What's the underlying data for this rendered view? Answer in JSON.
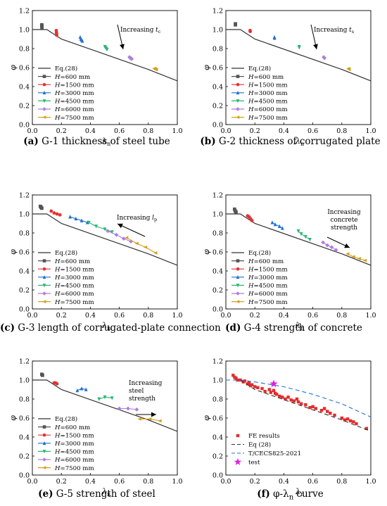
{
  "captions": [
    {
      "label": "(a)",
      "text": " G-1 thickness of steel tube"
    },
    {
      "label": "(b)",
      "text": " G-2 thickness of corrugated plate"
    },
    {
      "label": "(c)",
      "text": " G-3 length of corrugated-plate connection"
    },
    {
      "label": "(d)",
      "text": " G-4 strength of concrete"
    },
    {
      "label": "(e)",
      "text": " G-5 strength of steel"
    },
    {
      "label": "(f)",
      "text": "  φ-λ",
      "sub": "n",
      "tail": " curve"
    }
  ],
  "colors": {
    "eq28": "#333333",
    "H600": "#555555",
    "H1500": "#e63232",
    "H3000": "#1f6fd6",
    "H4500": "#2bb673",
    "H6000": "#b07ce0",
    "H7500": "#d4a017",
    "fe": "#e62b2b",
    "tcecs": "#1f6fd6",
    "test": "#e020e0"
  },
  "chart_data": [
    {
      "type": "line",
      "panel": "a",
      "xlabel": "λ",
      "xlabel_sub": "n",
      "ylabel": "φ",
      "xlim": [
        0,
        1.0
      ],
      "ylim": [
        0,
        1.2
      ],
      "xticks": [
        "0.0",
        "0.2",
        "0.4",
        "0.6",
        "0.8",
        "1.0"
      ],
      "yticks": [
        "0.0",
        "0.2",
        "0.4",
        "0.6",
        "0.8",
        "1.0",
        "1.2"
      ],
      "legend": [
        "Eq.(28)",
        "H=600 mm",
        "H=1500 mm",
        "H=3000 mm",
        "H=4500 mm",
        "H=6000 mm",
        "H=7500 mm"
      ],
      "annotation": {
        "text": "Increasing t",
        "sub": "c",
        "arrow": "down"
      },
      "series": [
        {
          "name": "Eq.(28)",
          "style": "line",
          "x": [
            0.0,
            0.1,
            0.2,
            0.8,
            1.0
          ],
          "y": [
            1.0,
            1.0,
            0.9,
            0.58,
            0.46
          ]
        },
        {
          "name": "H=600 mm",
          "style": "markers",
          "x": [
            0.065,
            0.065,
            0.066,
            0.066
          ],
          "y": [
            1.05,
            1.04,
            1.03,
            1.02
          ]
        },
        {
          "name": "H=1500 mm",
          "style": "markers",
          "x": [
            0.165,
            0.166,
            0.167,
            0.168
          ],
          "y": [
            0.99,
            0.97,
            0.96,
            0.94
          ]
        },
        {
          "name": "H=3000 mm",
          "style": "markers",
          "x": [
            0.33,
            0.335,
            0.34,
            0.345
          ],
          "y": [
            0.92,
            0.9,
            0.89,
            0.88
          ]
        },
        {
          "name": "H=4500 mm",
          "style": "markers",
          "x": [
            0.5,
            0.505,
            0.51,
            0.515
          ],
          "y": [
            0.82,
            0.81,
            0.8,
            0.79
          ]
        },
        {
          "name": "H=6000 mm",
          "style": "markers",
          "x": [
            0.67,
            0.675,
            0.68,
            0.685
          ],
          "y": [
            0.71,
            0.7,
            0.7,
            0.69
          ]
        },
        {
          "name": "H=7500 mm",
          "style": "markers",
          "x": [
            0.84,
            0.845,
            0.85,
            0.855
          ],
          "y": [
            0.59,
            0.59,
            0.58,
            0.58
          ]
        }
      ]
    },
    {
      "type": "line",
      "panel": "b",
      "xlabel": "λ",
      "xlabel_sub": "n",
      "ylabel": "φ",
      "xlim": [
        0,
        1.0
      ],
      "ylim": [
        0,
        1.2
      ],
      "xticks": [
        "0.0",
        "0.2",
        "0.4",
        "0.6",
        "0.8",
        "1.0"
      ],
      "yticks": [
        "0.0",
        "0.2",
        "0.4",
        "0.6",
        "0.8",
        "1.0",
        "1.2"
      ],
      "legend": [
        "Eq.(28)",
        "H=600 mm",
        "H=1500 mm",
        "H=3000 mm",
        "H=4500 mm",
        "H=6000 mm",
        "H=7500 mm"
      ],
      "annotation": {
        "text": "Increasing t",
        "sub": "s",
        "arrow": "down"
      },
      "series": [
        {
          "name": "Eq.(28)",
          "style": "line",
          "x": [
            0.0,
            0.1,
            0.2,
            0.8,
            1.0
          ],
          "y": [
            1.0,
            1.0,
            0.9,
            0.58,
            0.46
          ]
        },
        {
          "name": "H=600 mm",
          "style": "markers",
          "x": [
            0.066,
            0.066
          ],
          "y": [
            1.06,
            1.05
          ]
        },
        {
          "name": "H=1500 mm",
          "style": "markers",
          "x": [
            0.167,
            0.168
          ],
          "y": [
            0.99,
            0.98
          ]
        },
        {
          "name": "H=3000 mm",
          "style": "markers",
          "x": [
            0.335,
            0.336
          ],
          "y": [
            0.92,
            0.91
          ]
        },
        {
          "name": "H=4500 mm",
          "style": "markers",
          "x": [
            0.505,
            0.506
          ],
          "y": [
            0.82,
            0.81
          ]
        },
        {
          "name": "H=6000 mm",
          "style": "markers",
          "x": [
            0.675,
            0.68
          ],
          "y": [
            0.71,
            0.7
          ]
        },
        {
          "name": "H=7500 mm",
          "style": "markers",
          "x": [
            0.845,
            0.85
          ],
          "y": [
            0.59,
            0.58
          ]
        }
      ]
    },
    {
      "type": "line",
      "panel": "c",
      "xlabel": "λ",
      "xlabel_sub": "n",
      "ylabel": "φ",
      "xlim": [
        0,
        1.0
      ],
      "ylim": [
        0,
        1.2
      ],
      "xticks": [
        "0.0",
        "0.2",
        "0.4",
        "0.6",
        "0.8",
        "1.0"
      ],
      "yticks": [
        "0.0",
        "0.2",
        "0.4",
        "0.6",
        "0.8",
        "1.0",
        "1.2"
      ],
      "legend": [
        "Eq.(28)",
        "H=600 mm",
        "H=1500 mm",
        "H=3000 mm",
        "H=4500 mm",
        "H=6000 mm",
        "H=7500 mm"
      ],
      "annotation": {
        "text": "Increasing l",
        "sub": "p",
        "arrow": "up-left"
      },
      "series": [
        {
          "name": "Eq.(28)",
          "style": "line",
          "x": [
            0.0,
            0.1,
            0.2,
            0.8,
            1.0
          ],
          "y": [
            1.0,
            1.0,
            0.9,
            0.58,
            0.46
          ]
        },
        {
          "name": "H=600 mm",
          "style": "markers",
          "x": [
            0.055,
            0.06,
            0.065
          ],
          "y": [
            1.08,
            1.07,
            1.06
          ]
        },
        {
          "name": "H=1500 mm",
          "style": "markers",
          "x": [
            0.13,
            0.15,
            0.17,
            0.19
          ],
          "y": [
            1.03,
            1.01,
            1.0,
            0.99
          ]
        },
        {
          "name": "H=3000 mm",
          "style": "line-markers",
          "x": [
            0.26,
            0.3,
            0.34,
            0.38
          ],
          "y": [
            0.97,
            0.95,
            0.93,
            0.91
          ]
        },
        {
          "name": "H=4500 mm",
          "style": "line-markers",
          "x": [
            0.39,
            0.44,
            0.5,
            0.55
          ],
          "y": [
            0.91,
            0.87,
            0.84,
            0.81
          ]
        },
        {
          "name": "H=6000 mm",
          "style": "line-markers",
          "x": [
            0.52,
            0.58,
            0.63,
            0.68
          ],
          "y": [
            0.82,
            0.78,
            0.74,
            0.71
          ]
        },
        {
          "name": "H=7500 mm",
          "style": "line-markers",
          "x": [
            0.65,
            0.72,
            0.78,
            0.85
          ],
          "y": [
            0.75,
            0.69,
            0.65,
            0.59
          ]
        }
      ]
    },
    {
      "type": "line",
      "panel": "d",
      "xlabel": "λ",
      "xlabel_sub": "n",
      "ylabel": "φ",
      "xlim": [
        0,
        1.0
      ],
      "ylim": [
        0,
        1.2
      ],
      "xticks": [
        "0.0",
        "0.2",
        "0.4",
        "0.6",
        "0.8",
        "1.0"
      ],
      "yticks": [
        "0.0",
        "0.2",
        "0.4",
        "0.6",
        "0.8",
        "1.0",
        "1.2"
      ],
      "legend": [
        "Eq.(28)",
        "H=600 mm",
        "H=1500 mm",
        "H=3000 mm",
        "H=4500 mm",
        "H=6000 mm",
        "H=7500 mm"
      ],
      "annotation": {
        "lines": [
          "Increasing",
          "concrete",
          "strength"
        ],
        "arrow": "down-right"
      },
      "series": [
        {
          "name": "Eq.(28)",
          "style": "line",
          "x": [
            0.0,
            0.1,
            0.2,
            0.8,
            1.0
          ],
          "y": [
            1.0,
            1.0,
            0.9,
            0.58,
            0.46
          ]
        },
        {
          "name": "H=600 mm",
          "style": "markers",
          "x": [
            0.06,
            0.065,
            0.07
          ],
          "y": [
            1.05,
            1.03,
            1.02
          ]
        },
        {
          "name": "H=1500 mm",
          "style": "line-markers",
          "x": [
            0.15,
            0.16,
            0.17,
            0.18
          ],
          "y": [
            0.98,
            0.97,
            0.95,
            0.93
          ]
        },
        {
          "name": "H=3000 mm",
          "style": "line-markers",
          "x": [
            0.32,
            0.34,
            0.37,
            0.39
          ],
          "y": [
            0.91,
            0.89,
            0.87,
            0.85
          ]
        },
        {
          "name": "H=4500 mm",
          "style": "line-markers",
          "x": [
            0.5,
            0.52,
            0.55,
            0.58
          ],
          "y": [
            0.82,
            0.79,
            0.76,
            0.73
          ]
        },
        {
          "name": "H=6000 mm",
          "style": "line-markers",
          "x": [
            0.67,
            0.7,
            0.73,
            0.76
          ],
          "y": [
            0.7,
            0.67,
            0.65,
            0.62
          ]
        },
        {
          "name": "H=7500 mm",
          "style": "line-markers",
          "x": [
            0.84,
            0.88,
            0.92,
            0.96
          ],
          "y": [
            0.58,
            0.55,
            0.53,
            0.51
          ]
        }
      ]
    },
    {
      "type": "line",
      "panel": "e",
      "xlabel": "λ",
      "xlabel_sub": "n",
      "ylabel": "φ",
      "xlim": [
        0,
        1.0
      ],
      "ylim": [
        0,
        1.2
      ],
      "xticks": [
        "0.0",
        "0.2",
        "0.4",
        "0.6",
        "0.8",
        "1.0"
      ],
      "yticks": [
        "0.0",
        "0.2",
        "0.4",
        "0.6",
        "0.8",
        "1.0",
        "1.2"
      ],
      "legend": [
        "Eq.(28)",
        "H=600 mm",
        "H=1500 mm",
        "H=3000 mm",
        "H=4500 mm",
        "H=6000 mm",
        "H=7500 mm"
      ],
      "annotation": {
        "lines": [
          "Increasing",
          "steel",
          "strength"
        ],
        "arrow": "right"
      },
      "series": [
        {
          "name": "Eq.(28)",
          "style": "line",
          "x": [
            0.0,
            0.1,
            0.2,
            0.8,
            1.0
          ],
          "y": [
            1.0,
            1.0,
            0.9,
            0.58,
            0.46
          ]
        },
        {
          "name": "H=600 mm",
          "style": "markers",
          "x": [
            0.065,
            0.07
          ],
          "y": [
            1.06,
            1.05
          ]
        },
        {
          "name": "H=1500 mm",
          "style": "line-markers",
          "x": [
            0.15,
            0.16,
            0.17
          ],
          "y": [
            0.97,
            0.97,
            0.96
          ]
        },
        {
          "name": "H=3000 mm",
          "style": "line-markers",
          "x": [
            0.31,
            0.34,
            0.37
          ],
          "y": [
            0.89,
            0.91,
            0.9
          ]
        },
        {
          "name": "H=4500 mm",
          "style": "line-markers",
          "x": [
            0.46,
            0.5,
            0.55
          ],
          "y": [
            0.8,
            0.82,
            0.81
          ]
        },
        {
          "name": "H=6000 mm",
          "style": "line-markers",
          "x": [
            0.6,
            0.66,
            0.72
          ],
          "y": [
            0.7,
            0.7,
            0.69
          ]
        },
        {
          "name": "H=7500 mm",
          "style": "line-markers",
          "x": [
            0.74,
            0.81,
            0.88
          ],
          "y": [
            0.59,
            0.59,
            0.57
          ]
        }
      ]
    },
    {
      "type": "scatter",
      "panel": "f",
      "xlabel": "λ",
      "xlabel_sub": "n",
      "ylabel": "φ",
      "xlim": [
        0,
        1.0
      ],
      "ylim": [
        0,
        1.2
      ],
      "xticks": [
        "0.0",
        "0.2",
        "0.4",
        "0.6",
        "0.8",
        "1.0"
      ],
      "yticks": [
        "0.0",
        "0.2",
        "0.4",
        "0.6",
        "0.8",
        "1.0",
        "1.2"
      ],
      "legend": [
        "FE results",
        "Eq (28)",
        "T/CECS825-2021",
        "test"
      ],
      "series": [
        {
          "name": "FE results",
          "style": "squares",
          "x": [
            0.05,
            0.06,
            0.07,
            0.08,
            0.1,
            0.12,
            0.13,
            0.15,
            0.16,
            0.17,
            0.18,
            0.2,
            0.22,
            0.25,
            0.27,
            0.3,
            0.31,
            0.33,
            0.34,
            0.35,
            0.37,
            0.39,
            0.41,
            0.43,
            0.45,
            0.47,
            0.49,
            0.5,
            0.52,
            0.55,
            0.58,
            0.6,
            0.62,
            0.66,
            0.68,
            0.7,
            0.72,
            0.75,
            0.8,
            0.82,
            0.84,
            0.86,
            0.88,
            0.9,
            0.97
          ],
          "y": [
            1.05,
            1.03,
            1.02,
            1.0,
            1.0,
            0.98,
            0.99,
            0.96,
            0.97,
            0.94,
            0.95,
            0.93,
            0.92,
            0.91,
            0.88,
            0.9,
            0.87,
            0.89,
            0.86,
            0.85,
            0.83,
            0.82,
            0.8,
            0.82,
            0.79,
            0.78,
            0.8,
            0.77,
            0.75,
            0.74,
            0.71,
            0.72,
            0.7,
            0.68,
            0.7,
            0.67,
            0.65,
            0.63,
            0.6,
            0.58,
            0.59,
            0.57,
            0.56,
            0.54,
            0.49
          ]
        },
        {
          "name": "Eq (28)",
          "style": "dash",
          "x": [
            0.0,
            0.1,
            0.2,
            0.8,
            1.0
          ],
          "y": [
            1.0,
            1.0,
            0.9,
            0.58,
            0.46
          ]
        },
        {
          "name": "T/CECS825-2021",
          "style": "dash",
          "x": [
            0.0,
            0.1,
            0.2,
            0.4,
            0.6,
            0.8,
            1.0
          ],
          "y": [
            1.0,
            1.0,
            0.98,
            0.93,
            0.85,
            0.75,
            0.61
          ]
        },
        {
          "name": "test",
          "style": "star",
          "x": [
            0.33
          ],
          "y": [
            0.96
          ]
        }
      ]
    }
  ]
}
